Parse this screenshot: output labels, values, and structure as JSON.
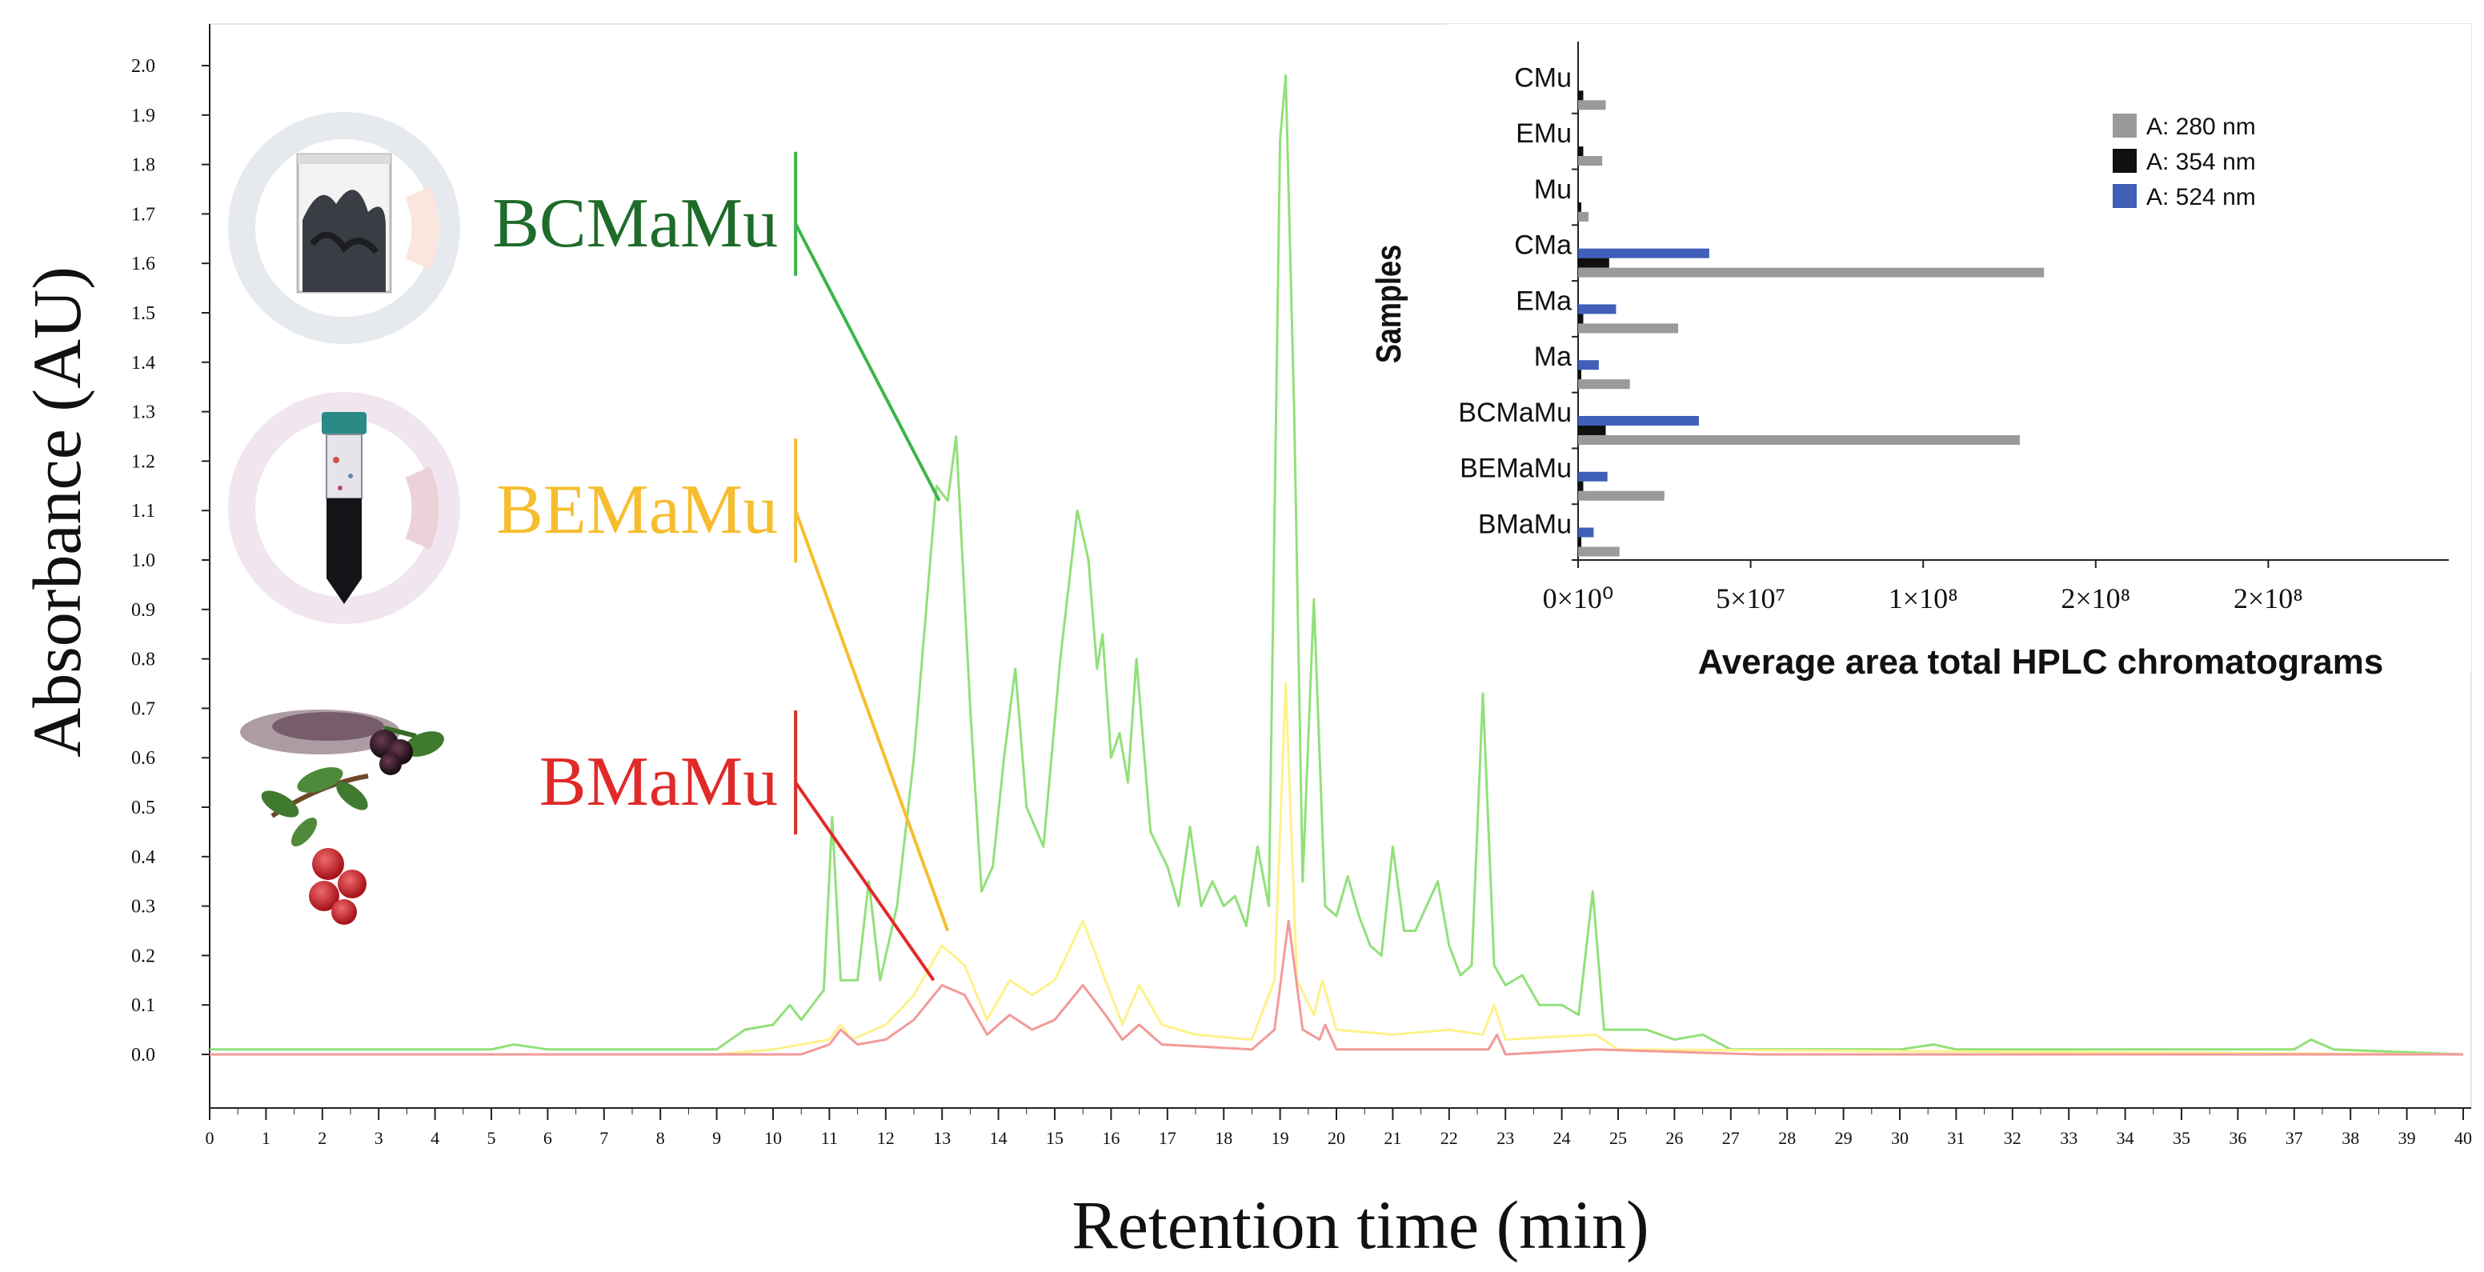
{
  "chart_data": [
    {
      "type": "line",
      "title": "",
      "xlabel": "Retention time (min)",
      "ylabel": "Absorbance (AU)",
      "xlim": [
        0,
        40
      ],
      "ylim": [
        -0.1,
        2.1
      ],
      "x_ticks": [
        "0",
        "1",
        "2",
        "3",
        "4",
        "5",
        "6",
        "7",
        "8",
        "9",
        "10",
        "11",
        "12",
        "13",
        "14",
        "15",
        "16",
        "17",
        "18",
        "19",
        "20",
        "21",
        "22",
        "23",
        "24",
        "25",
        "26",
        "27",
        "28",
        "29",
        "30",
        "31",
        "32",
        "33",
        "34",
        "35",
        "36",
        "37",
        "38",
        "39",
        "40"
      ],
      "y_ticks": [
        {
          "value": 0.0,
          "label": "0.0"
        },
        {
          "value": 0.1,
          "label": "0.1"
        },
        {
          "value": 0.2,
          "label": "0.2"
        },
        {
          "value": 0.3,
          "label": "0.3"
        },
        {
          "value": 0.4,
          "label": "0.4"
        },
        {
          "value": 0.5,
          "label": "0.5"
        },
        {
          "value": 0.6,
          "label": "0.6"
        },
        {
          "value": 0.7,
          "label": "0.7"
        },
        {
          "value": 0.8,
          "label": "0.8"
        },
        {
          "value": 0.9,
          "label": "0.9"
        },
        {
          "value": 1.0,
          "label": "1.0"
        },
        {
          "value": 1.1,
          "label": "1.1"
        },
        {
          "value": 1.2,
          "label": "1.2"
        },
        {
          "value": 1.3,
          "label": "1.3"
        },
        {
          "value": 1.4,
          "label": "1.4"
        },
        {
          "value": 1.5,
          "label": "1.5"
        },
        {
          "value": 1.6,
          "label": "1.6"
        },
        {
          "value": 1.7,
          "label": "1.7"
        },
        {
          "value": 1.8,
          "label": "1.8"
        },
        {
          "value": 1.9,
          "label": "1.9"
        },
        {
          "value": 2.0,
          "label": "2.0"
        }
      ],
      "series": [
        {
          "name": "BCMaMu",
          "color": "#92e07a",
          "label_color": "#1e6b2a",
          "pointer_color": "#3cb54a",
          "label_anchor": {
            "x": 10.4,
            "y": 1.68
          },
          "pointer_target": {
            "x": 12.95,
            "y": 1.12
          },
          "icon": "beaker-icon",
          "points": [
            [
              0,
              0.01
            ],
            [
              5,
              0.01
            ],
            [
              5.4,
              0.02
            ],
            [
              6,
              0.01
            ],
            [
              9,
              0.01
            ],
            [
              9.5,
              0.05
            ],
            [
              10,
              0.06
            ],
            [
              10.3,
              0.1
            ],
            [
              10.5,
              0.07
            ],
            [
              10.9,
              0.13
            ],
            [
              11.05,
              0.48
            ],
            [
              11.2,
              0.15
            ],
            [
              11.5,
              0.15
            ],
            [
              11.7,
              0.35
            ],
            [
              11.9,
              0.15
            ],
            [
              12.2,
              0.3
            ],
            [
              12.5,
              0.6
            ],
            [
              12.9,
              1.15
            ],
            [
              13.1,
              1.12
            ],
            [
              13.25,
              1.25
            ],
            [
              13.5,
              0.7
            ],
            [
              13.7,
              0.33
            ],
            [
              13.9,
              0.38
            ],
            [
              14.1,
              0.6
            ],
            [
              14.3,
              0.78
            ],
            [
              14.5,
              0.5
            ],
            [
              14.8,
              0.42
            ],
            [
              15.1,
              0.8
            ],
            [
              15.4,
              1.1
            ],
            [
              15.6,
              1.0
            ],
            [
              15.75,
              0.78
            ],
            [
              15.85,
              0.85
            ],
            [
              16.0,
              0.6
            ],
            [
              16.15,
              0.65
            ],
            [
              16.3,
              0.55
            ],
            [
              16.45,
              0.8
            ],
            [
              16.7,
              0.45
            ],
            [
              17.0,
              0.38
            ],
            [
              17.2,
              0.3
            ],
            [
              17.4,
              0.46
            ],
            [
              17.6,
              0.3
            ],
            [
              17.8,
              0.35
            ],
            [
              18.0,
              0.3
            ],
            [
              18.2,
              0.32
            ],
            [
              18.4,
              0.26
            ],
            [
              18.6,
              0.42
            ],
            [
              18.8,
              0.3
            ],
            [
              19.0,
              1.85
            ],
            [
              19.1,
              1.98
            ],
            [
              19.25,
              1.3
            ],
            [
              19.4,
              0.35
            ],
            [
              19.6,
              0.92
            ],
            [
              19.8,
              0.3
            ],
            [
              20.0,
              0.28
            ],
            [
              20.2,
              0.36
            ],
            [
              20.4,
              0.28
            ],
            [
              20.6,
              0.22
            ],
            [
              20.8,
              0.2
            ],
            [
              21.0,
              0.42
            ],
            [
              21.2,
              0.25
            ],
            [
              21.4,
              0.25
            ],
            [
              21.6,
              0.3
            ],
            [
              21.8,
              0.35
            ],
            [
              22.0,
              0.22
            ],
            [
              22.2,
              0.16
            ],
            [
              22.4,
              0.18
            ],
            [
              22.6,
              0.73
            ],
            [
              22.8,
              0.18
            ],
            [
              23.0,
              0.14
            ],
            [
              23.3,
              0.16
            ],
            [
              23.6,
              0.1
            ],
            [
              24.0,
              0.1
            ],
            [
              24.3,
              0.08
            ],
            [
              24.55,
              0.33
            ],
            [
              24.75,
              0.05
            ],
            [
              25.5,
              0.05
            ],
            [
              26,
              0.03
            ],
            [
              26.5,
              0.04
            ],
            [
              27,
              0.01
            ],
            [
              30,
              0.01
            ],
            [
              30.6,
              0.02
            ],
            [
              31,
              0.01
            ],
            [
              37,
              0.01
            ],
            [
              37.3,
              0.03
            ],
            [
              37.7,
              0.01
            ],
            [
              40,
              0.0
            ]
          ]
        },
        {
          "name": "BEMaMu",
          "color": "#fdf28a",
          "label_color": "#f6bd2e",
          "pointer_color": "#f6bd2e",
          "label_anchor": {
            "x": 10.4,
            "y": 1.1
          },
          "pointer_target": {
            "x": 13.1,
            "y": 0.25
          },
          "icon": "tube-icon",
          "points": [
            [
              0,
              0.0
            ],
            [
              9,
              0.0
            ],
            [
              10,
              0.01
            ],
            [
              11,
              0.03
            ],
            [
              11.2,
              0.06
            ],
            [
              11.4,
              0.03
            ],
            [
              12,
              0.06
            ],
            [
              12.5,
              0.12
            ],
            [
              13.0,
              0.22
            ],
            [
              13.4,
              0.18
            ],
            [
              13.8,
              0.07
            ],
            [
              14.2,
              0.15
            ],
            [
              14.6,
              0.12
            ],
            [
              15.0,
              0.15
            ],
            [
              15.5,
              0.27
            ],
            [
              15.9,
              0.15
            ],
            [
              16.2,
              0.06
            ],
            [
              16.5,
              0.14
            ],
            [
              16.9,
              0.06
            ],
            [
              17.5,
              0.04
            ],
            [
              18.5,
              0.03
            ],
            [
              18.9,
              0.15
            ],
            [
              19.1,
              0.75
            ],
            [
              19.3,
              0.15
            ],
            [
              19.6,
              0.08
            ],
            [
              19.75,
              0.15
            ],
            [
              20.0,
              0.05
            ],
            [
              21,
              0.04
            ],
            [
              22,
              0.05
            ],
            [
              22.6,
              0.04
            ],
            [
              22.8,
              0.1
            ],
            [
              23,
              0.03
            ],
            [
              24.6,
              0.04
            ],
            [
              25,
              0.01
            ],
            [
              40,
              0.0
            ]
          ]
        },
        {
          "name": "BMaMu",
          "color": "#f29a9a",
          "label_color": "#e02a2a",
          "pointer_color": "#e02a2a",
          "label_anchor": {
            "x": 10.4,
            "y": 0.55
          },
          "pointer_target": {
            "x": 12.85,
            "y": 0.15
          },
          "icon": "berries-icon",
          "points": [
            [
              0,
              0.0
            ],
            [
              9,
              0.0
            ],
            [
              10.5,
              0.0
            ],
            [
              11,
              0.02
            ],
            [
              11.2,
              0.05
            ],
            [
              11.5,
              0.02
            ],
            [
              12,
              0.03
            ],
            [
              12.5,
              0.07
            ],
            [
              13.0,
              0.14
            ],
            [
              13.4,
              0.12
            ],
            [
              13.8,
              0.04
            ],
            [
              14.2,
              0.08
            ],
            [
              14.6,
              0.05
            ],
            [
              15.0,
              0.07
            ],
            [
              15.5,
              0.14
            ],
            [
              15.9,
              0.08
            ],
            [
              16.2,
              0.03
            ],
            [
              16.5,
              0.06
            ],
            [
              16.9,
              0.02
            ],
            [
              18.5,
              0.01
            ],
            [
              18.9,
              0.05
            ],
            [
              19.15,
              0.27
            ],
            [
              19.4,
              0.05
            ],
            [
              19.7,
              0.03
            ],
            [
              19.8,
              0.06
            ],
            [
              20.0,
              0.01
            ],
            [
              22.7,
              0.01
            ],
            [
              22.85,
              0.04
            ],
            [
              23,
              0.0
            ],
            [
              24.6,
              0.01
            ],
            [
              27.5,
              0.0
            ],
            [
              40,
              0.0
            ]
          ]
        }
      ]
    },
    {
      "type": "bar",
      "orientation": "horizontal",
      "title": "",
      "xlabel": "Average area total HPLC chromatograms",
      "ylabel": "Samples",
      "xlim": [
        0,
        250000000
      ],
      "x_ticks": [
        {
          "value": 0,
          "label": "0×10⁰"
        },
        {
          "value": 50000000,
          "label": "5×10⁷"
        },
        {
          "value": 100000000,
          "label": "1×10⁸"
        },
        {
          "value": 150000000,
          "label": "2×10⁸"
        },
        {
          "value": 200000000,
          "label": "2×10⁸"
        }
      ],
      "categories": [
        "CMu",
        "EMu",
        "Mu",
        "CMa",
        "EMa",
        "Ma",
        "BCMaMu",
        "BEMaMu",
        "BMaMu"
      ],
      "legend_position": "top-right",
      "series": [
        {
          "name": "A: 280 nm",
          "color": "#9a9a9a",
          "values": [
            8000000,
            7000000,
            3000000,
            135000000,
            29000000,
            15000000,
            128000000,
            25000000,
            12000000
          ]
        },
        {
          "name": "A: 354 nm",
          "color": "#101010",
          "values": [
            1500000,
            1500000,
            500000,
            9000000,
            1500000,
            500000,
            8000000,
            1500000,
            500000
          ]
        },
        {
          "name": "A: 524 nm",
          "color": "#3f5fb8",
          "values": [
            0,
            0,
            0,
            38000000,
            11000000,
            6000000,
            35000000,
            8500000,
            4500000
          ]
        }
      ]
    }
  ]
}
